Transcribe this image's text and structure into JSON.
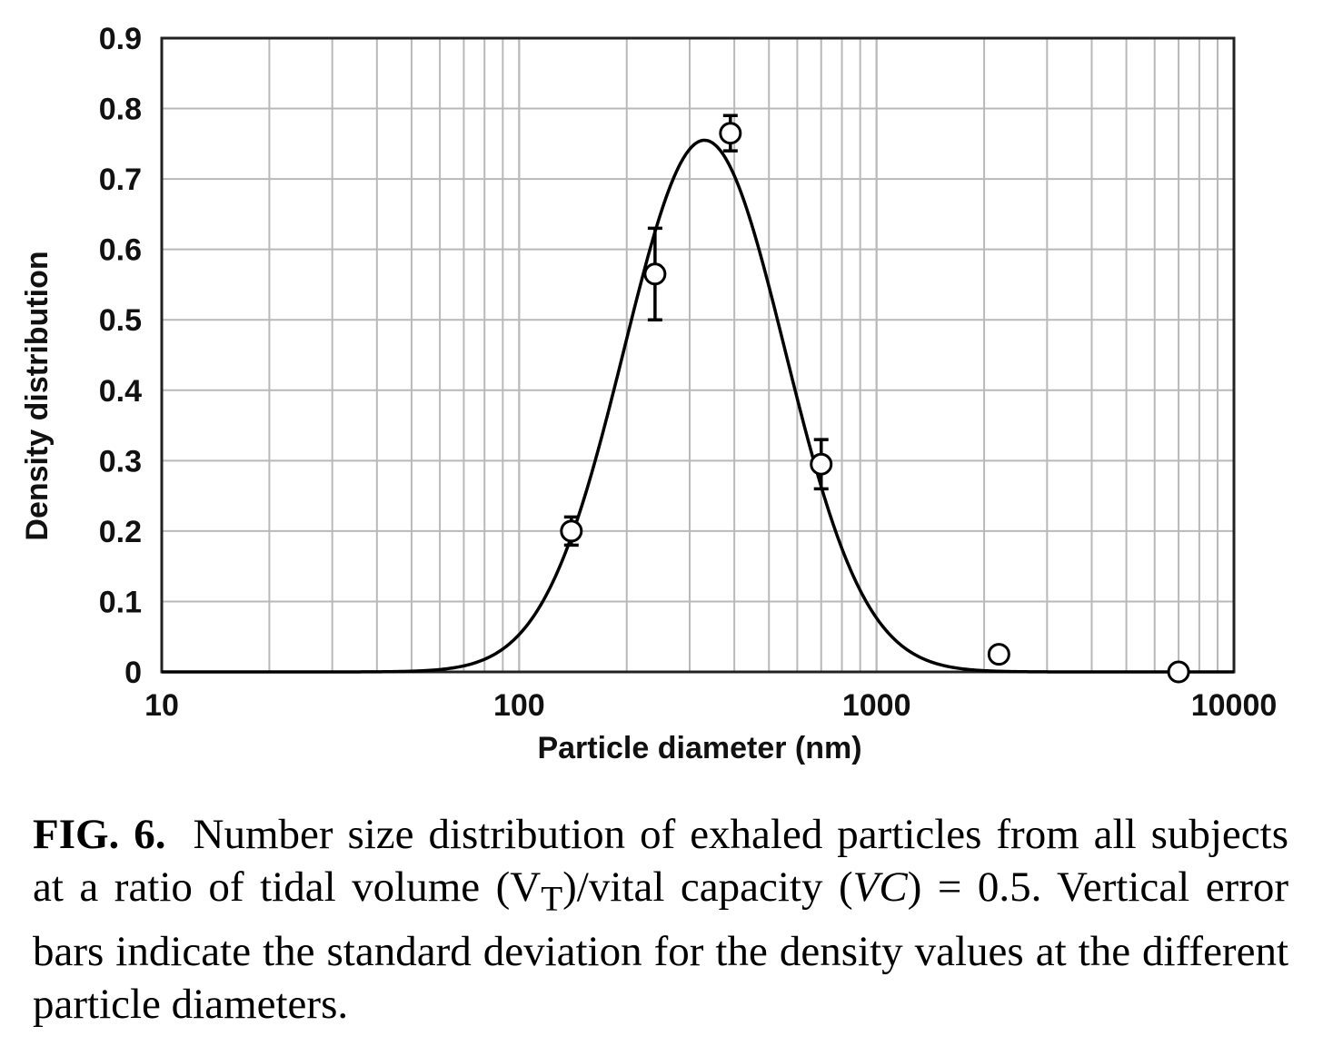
{
  "chart_data": {
    "type": "scatter",
    "xlabel": "Particle diameter (nm)",
    "ylabel": "Density distribution",
    "x_scale": "log",
    "xlim": [
      10,
      10000
    ],
    "ylim": [
      0,
      0.9
    ],
    "x_ticks": [
      "10",
      "100",
      "1000",
      "10000"
    ],
    "y_ticks": [
      "0",
      "0.1",
      "0.2",
      "0.3",
      "0.4",
      "0.5",
      "0.6",
      "0.7",
      "0.8",
      "0.9"
    ],
    "grid": true,
    "points": [
      {
        "x": 140,
        "y": 0.2,
        "err": 0.02
      },
      {
        "x": 240,
        "y": 0.565,
        "err": 0.065
      },
      {
        "x": 390,
        "y": 0.765,
        "err": 0.025
      },
      {
        "x": 700,
        "y": 0.295,
        "err": 0.035
      },
      {
        "x": 2200,
        "y": 0.025,
        "err": 0
      },
      {
        "x": 7000,
        "y": 0.0,
        "err": 0
      }
    ],
    "fit_curve": {
      "type": "lognormal",
      "peak_x": 330,
      "peak_y": 0.755
    }
  },
  "caption": {
    "label": "FIG. 6.",
    "text": "Number size distribution of exhaled particles from all subjects at a ratio of tidal volume (V",
    "vt_sub": "T",
    "text2": ")/vital capacity (",
    "vc": "VC",
    "text3": ") = 0.5. Vertical error bars indicate the standard deviation for the density values at the different particle diameters."
  }
}
